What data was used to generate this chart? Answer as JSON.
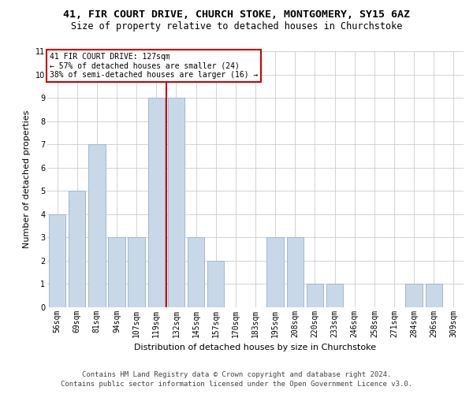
{
  "title": "41, FIR COURT DRIVE, CHURCH STOKE, MONTGOMERY, SY15 6AZ",
  "subtitle": "Size of property relative to detached houses in Churchstoke",
  "xlabel": "Distribution of detached houses by size in Churchstoke",
  "ylabel": "Number of detached properties",
  "bar_labels": [
    "56sqm",
    "69sqm",
    "81sqm",
    "94sqm",
    "107sqm",
    "119sqm",
    "132sqm",
    "145sqm",
    "157sqm",
    "170sqm",
    "183sqm",
    "195sqm",
    "208sqm",
    "220sqm",
    "233sqm",
    "246sqm",
    "258sqm",
    "271sqm",
    "284sqm",
    "296sqm",
    "309sqm"
  ],
  "bar_values": [
    4,
    5,
    7,
    3,
    3,
    9,
    9,
    3,
    2,
    0,
    0,
    3,
    3,
    1,
    1,
    0,
    0,
    0,
    1,
    1,
    0
  ],
  "bar_color": "#c8d8e8",
  "bar_edge_color": "#a0b8cc",
  "grid_color": "#cccccc",
  "vline_color": "#cc0000",
  "annotation_line1": "41 FIR COURT DRIVE: 127sqm",
  "annotation_line2": "← 57% of detached houses are smaller (24)",
  "annotation_line3": "38% of semi-detached houses are larger (16) →",
  "annotation_box_color": "#cc0000",
  "ylim": [
    0,
    11
  ],
  "yticks": [
    0,
    1,
    2,
    3,
    4,
    5,
    6,
    7,
    8,
    9,
    10,
    11
  ],
  "footer_line1": "Contains HM Land Registry data © Crown copyright and database right 2024.",
  "footer_line2": "Contains public sector information licensed under the Open Government Licence v3.0.",
  "title_fontsize": 9.5,
  "subtitle_fontsize": 8.5,
  "xlabel_fontsize": 8,
  "ylabel_fontsize": 8,
  "tick_fontsize": 7,
  "annotation_fontsize": 7,
  "footer_fontsize": 6.5
}
